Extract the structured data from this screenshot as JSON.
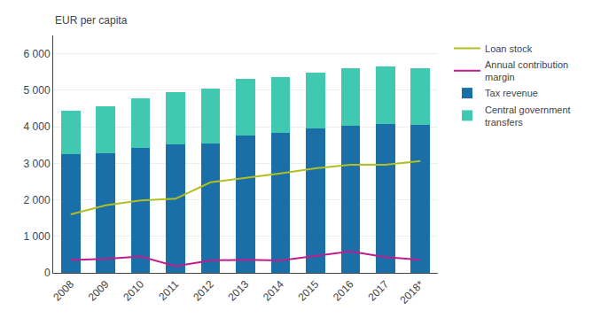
{
  "chart_data": {
    "type": "bar",
    "stacked": true,
    "ylabel": "EUR per capita",
    "categories": [
      "2008",
      "2009",
      "2010",
      "2011",
      "2012",
      "2013",
      "2014",
      "2015",
      "2016",
      "2017",
      "2018*"
    ],
    "series": [
      {
        "name": "Tax revenue",
        "type": "bar",
        "color": "#1a6fa8",
        "values": [
          3250,
          3280,
          3420,
          3520,
          3550,
          3770,
          3840,
          3960,
          4020,
          4080,
          4060
        ]
      },
      {
        "name": "Central government\ntransfers",
        "type": "bar",
        "color": "#40c8b0",
        "values": [
          1200,
          1270,
          1360,
          1430,
          1500,
          1530,
          1510,
          1520,
          1580,
          1570,
          1540
        ]
      },
      {
        "name": "Annual contribution\nmargin",
        "type": "line",
        "color": "#be1e8c",
        "values": [
          350,
          380,
          450,
          180,
          340,
          360,
          340,
          460,
          590,
          430,
          360
        ]
      },
      {
        "name": "Loan stock",
        "type": "line",
        "color": "#b0c020",
        "values": [
          1600,
          1850,
          1980,
          2030,
          2480,
          2600,
          2720,
          2860,
          2960,
          2960,
          3060
        ]
      }
    ],
    "ylim": [
      0,
      6500
    ],
    "yticks": [
      0,
      {
        "value": 1000,
        "label": "1 000"
      },
      {
        "value": 2000,
        "label": "2 000"
      },
      {
        "value": 3000,
        "label": "3 000"
      },
      {
        "value": 4000,
        "label": "4 000"
      },
      {
        "value": 5000,
        "label": "5 000"
      },
      {
        "value": 6000,
        "label": "6 000"
      }
    ],
    "grid": true,
    "legend": "right"
  }
}
